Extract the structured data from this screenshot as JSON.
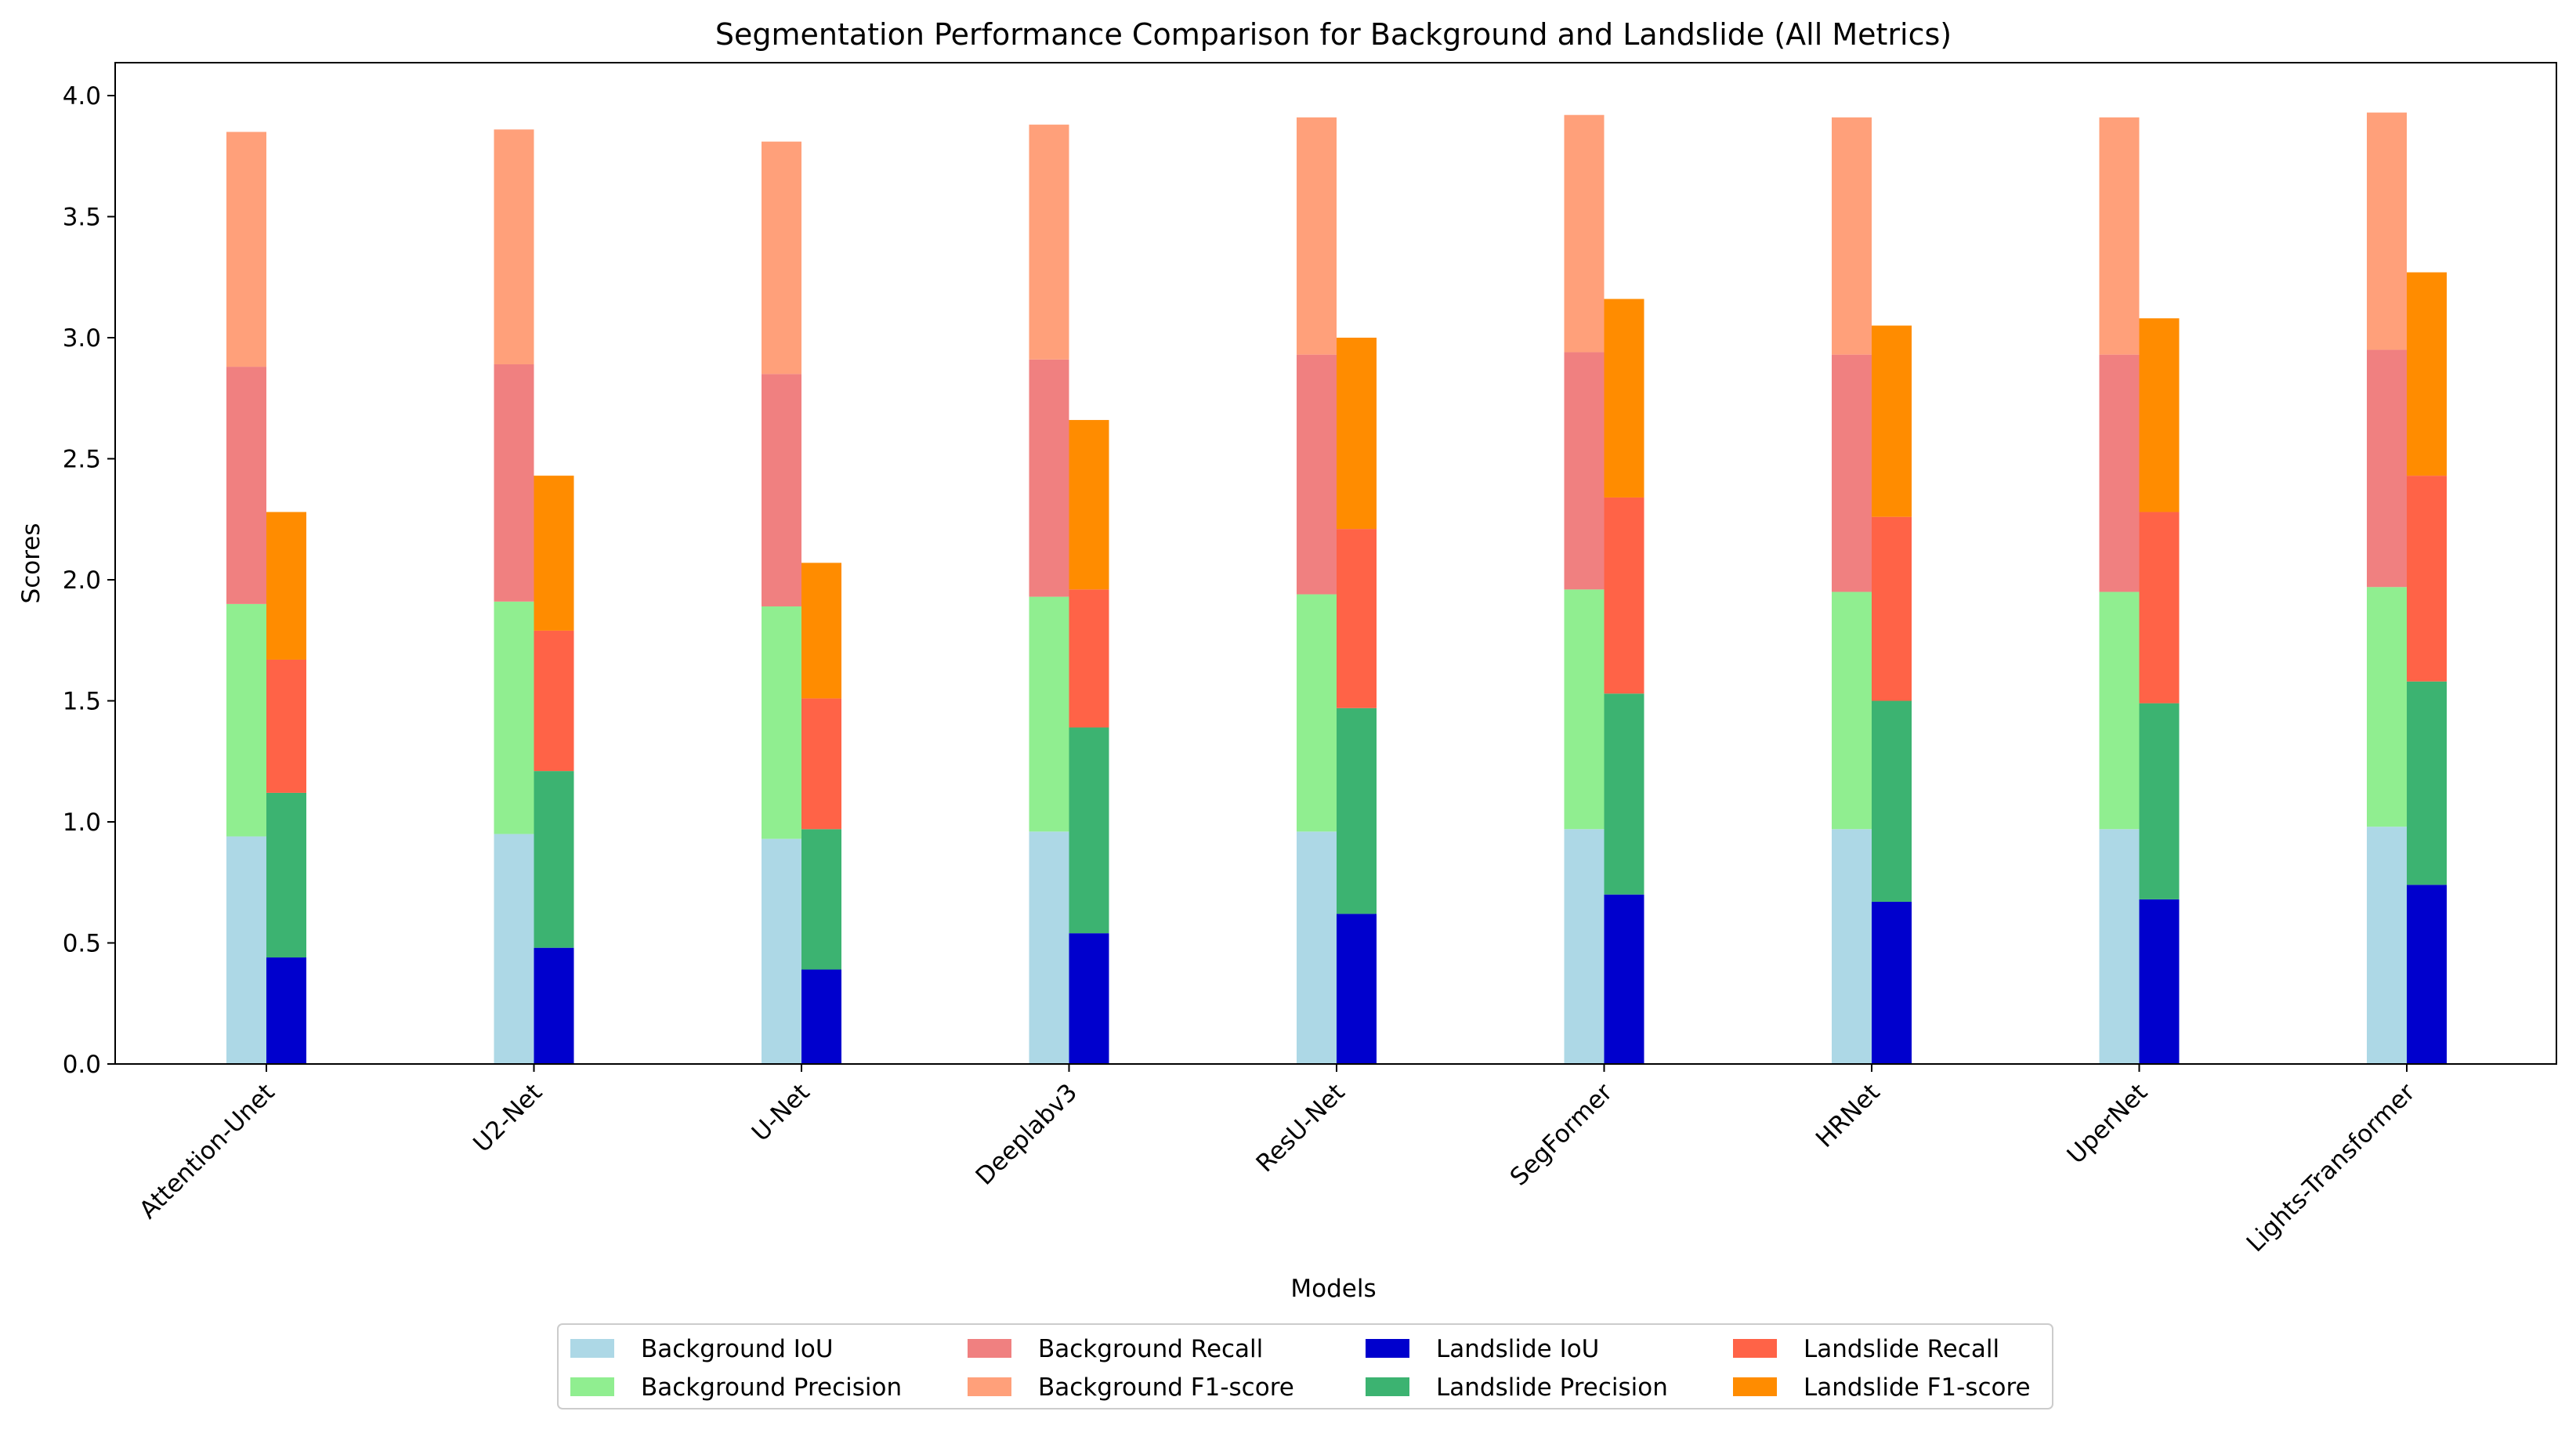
{
  "chart_data": {
    "type": "bar",
    "title": "Segmentation Performance Comparison for Background and Landslide (All Metrics)",
    "xlabel": "Models",
    "ylabel": "Scores",
    "ylim": [
      0,
      4.1
    ],
    "yticks": [
      "0.0",
      "0.5",
      "1.0",
      "1.5",
      "2.0",
      "2.5",
      "3.0",
      "3.5",
      "4.0"
    ],
    "grid": false,
    "legend_position": "bottom-center",
    "categories": [
      "Attention-Unet",
      "U2-Net",
      "U-Net",
      "Deeplabv3",
      "ResU-Net",
      "SegFormer",
      "HRNet",
      "UperNet",
      "Lights-Transformer"
    ],
    "groups": [
      {
        "name": "Background",
        "series": [
          {
            "name": "Background IoU",
            "color": "#add8e6",
            "values": [
              0.94,
              0.95,
              0.93,
              0.96,
              0.96,
              0.97,
              0.97,
              0.97,
              0.98
            ]
          },
          {
            "name": "Background Precision",
            "color": "#90ee90",
            "values": [
              0.96,
              0.96,
              0.96,
              0.97,
              0.98,
              0.99,
              0.98,
              0.98,
              0.99
            ]
          },
          {
            "name": "Background Recall",
            "color": "#f08080",
            "values": [
              0.98,
              0.98,
              0.96,
              0.98,
              0.99,
              0.98,
              0.98,
              0.98,
              0.98
            ]
          },
          {
            "name": "Background F1-score",
            "color": "#ffa07a",
            "values": [
              0.97,
              0.97,
              0.96,
              0.97,
              0.98,
              0.98,
              0.98,
              0.98,
              0.98
            ]
          }
        ]
      },
      {
        "name": "Landslide",
        "series": [
          {
            "name": "Landslide IoU",
            "color": "#0000cd",
            "values": [
              0.44,
              0.48,
              0.39,
              0.54,
              0.62,
              0.7,
              0.67,
              0.68,
              0.74
            ]
          },
          {
            "name": "Landslide Precision",
            "color": "#3cb371",
            "values": [
              0.68,
              0.73,
              0.58,
              0.85,
              0.85,
              0.83,
              0.83,
              0.81,
              0.84
            ]
          },
          {
            "name": "Landslide Recall",
            "color": "#ff6347",
            "values": [
              0.55,
              0.58,
              0.54,
              0.57,
              0.74,
              0.81,
              0.76,
              0.79,
              0.85
            ]
          },
          {
            "name": "Landslide F1-score",
            "color": "#ff8c00",
            "values": [
              0.61,
              0.64,
              0.56,
              0.7,
              0.79,
              0.82,
              0.79,
              0.8,
              0.84
            ]
          }
        ]
      }
    ],
    "legend_order": [
      "Background IoU",
      "Background Precision",
      "Background Recall",
      "Background F1-score",
      "Landslide IoU",
      "Landslide Precision",
      "Landslide Recall",
      "Landslide F1-score"
    ]
  }
}
